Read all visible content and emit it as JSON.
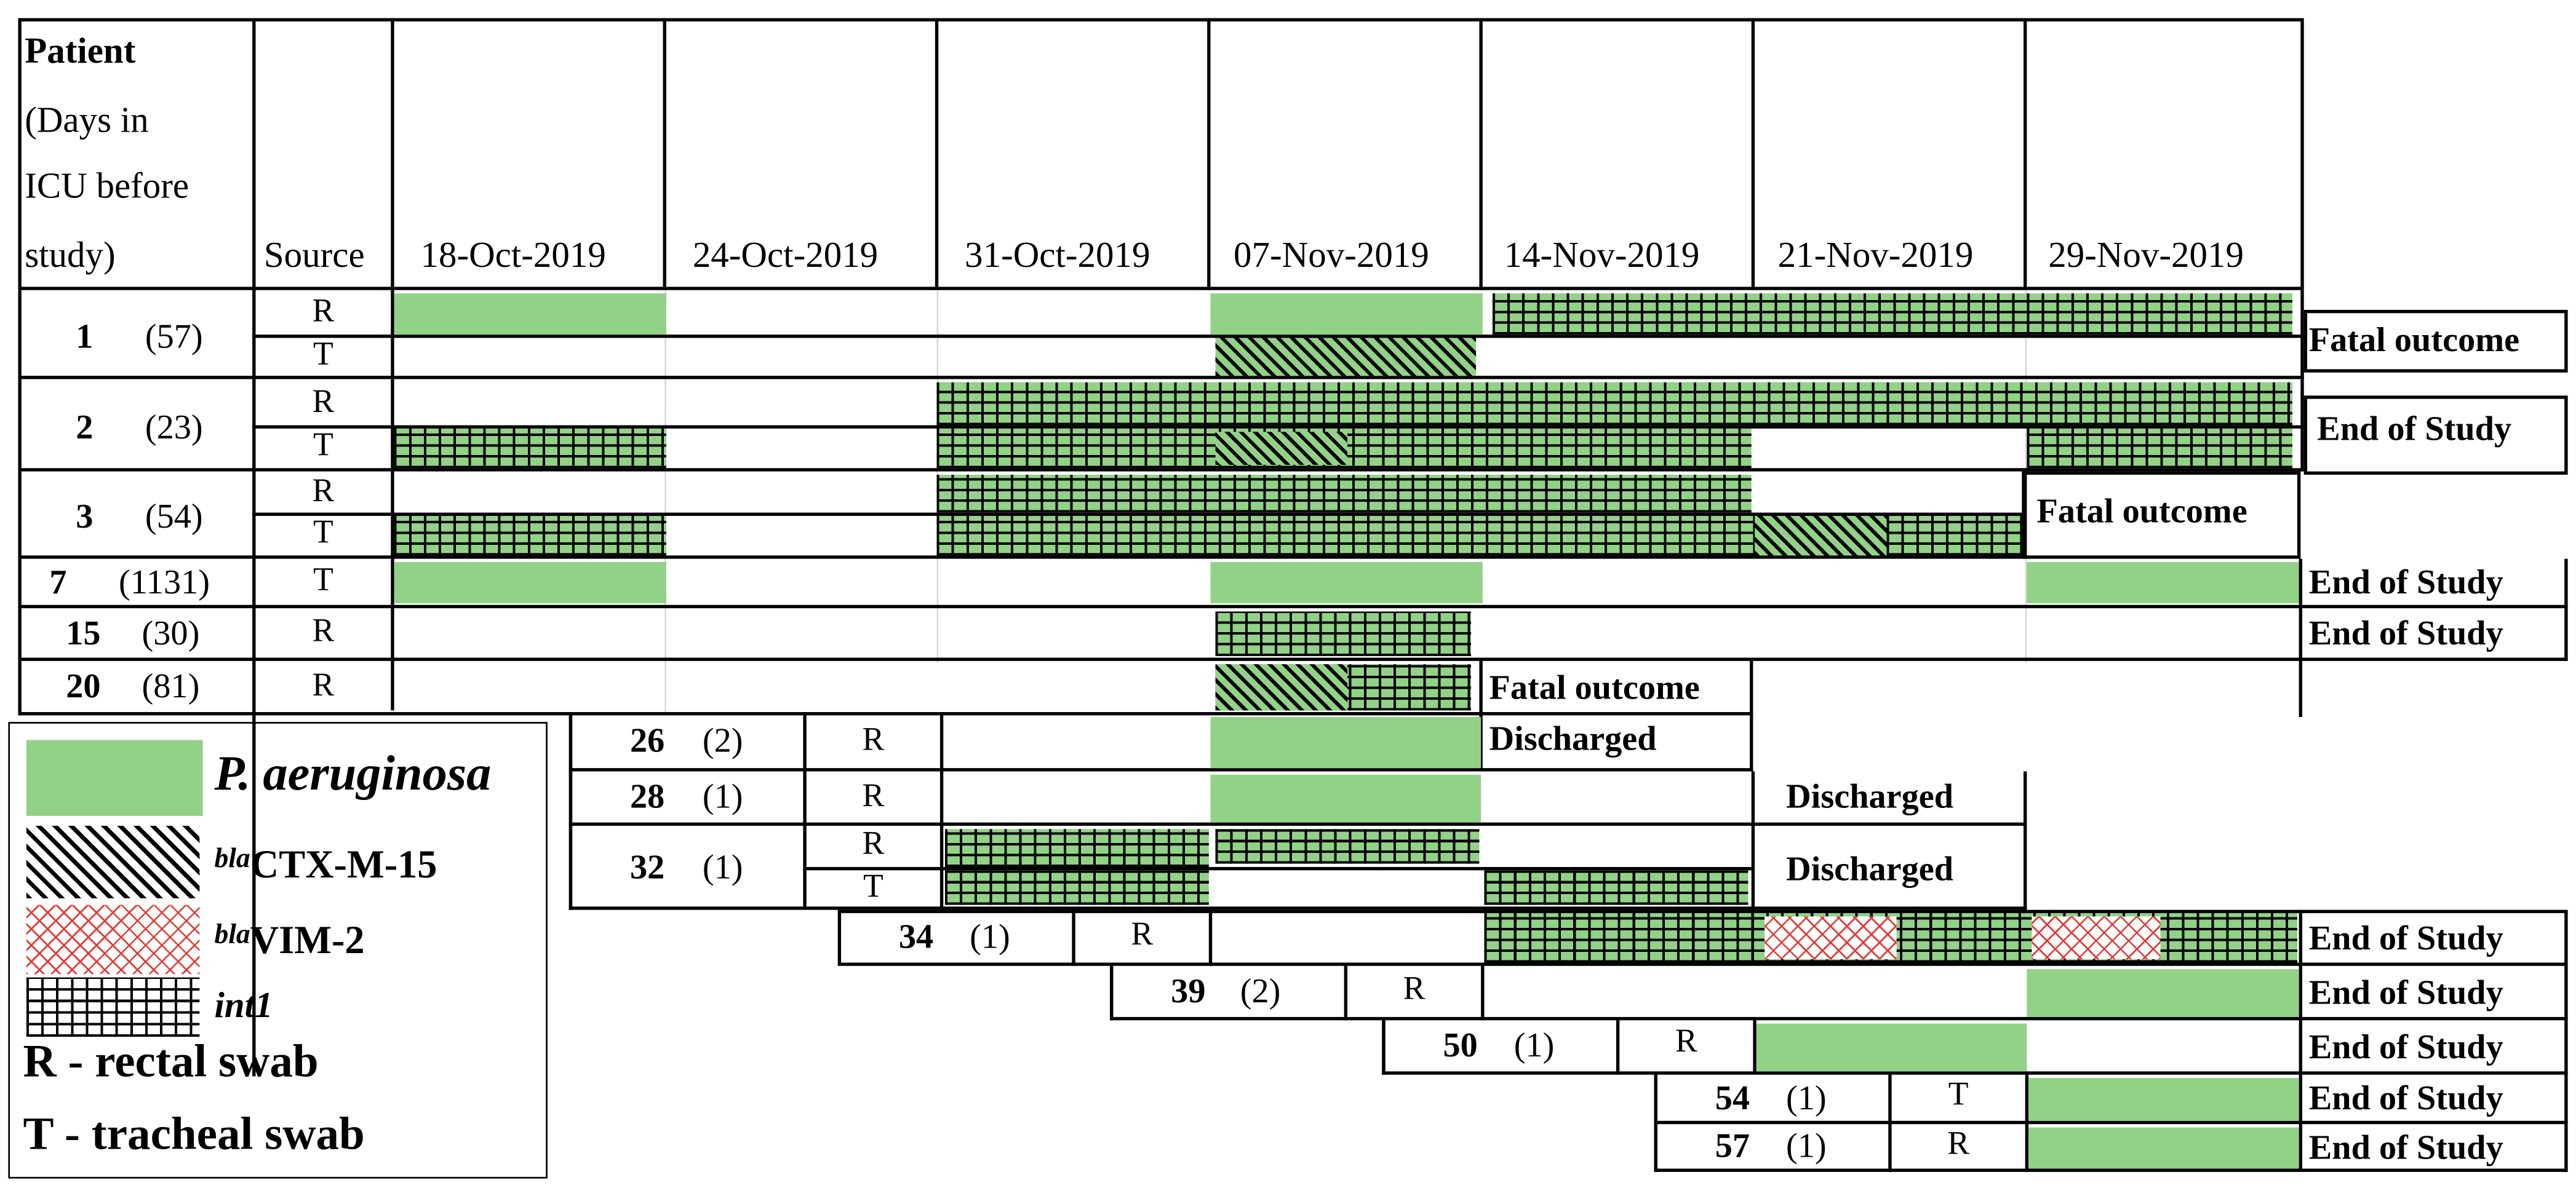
{
  "header": {
    "patient_line1": "Patient",
    "patient_line2": "(Days in",
    "patient_line3": "ICU before",
    "patient_line4": "study)",
    "source": "Source",
    "dates": [
      "18-Oct-2019",
      "24-Oct-2019",
      "31-Oct-2019",
      "07-Nov-2019",
      "14-Nov-2019",
      "21-Nov-2019",
      "29-Nov-2019"
    ]
  },
  "patients": [
    {
      "id": "1",
      "days": "(57)",
      "sources": [
        "R",
        "T"
      ],
      "outcome": "Fatal outcome"
    },
    {
      "id": "2",
      "days": "(23)",
      "sources": [
        "R",
        "T"
      ],
      "outcome": "End of Study"
    },
    {
      "id": "3",
      "days": "(54)",
      "sources": [
        "R",
        "T"
      ],
      "outcome": "Fatal outcome"
    },
    {
      "id": "7",
      "days": "(1131)",
      "sources": [
        "T"
      ],
      "outcome": "End of Study"
    },
    {
      "id": "15",
      "days": "(30)",
      "sources": [
        "R"
      ],
      "outcome": "End of Study"
    },
    {
      "id": "20",
      "days": "(81)",
      "sources": [
        "R"
      ],
      "outcome": "Fatal outcome"
    },
    {
      "id": "26",
      "days": "(2)",
      "sources": [
        "R"
      ],
      "outcome": "Discharged"
    },
    {
      "id": "28",
      "days": "(1)",
      "sources": [
        "R"
      ],
      "outcome": "Discharged"
    },
    {
      "id": "32",
      "days": "(1)",
      "sources": [
        "R",
        "T"
      ],
      "outcome": "Discharged"
    },
    {
      "id": "34",
      "days": "(1)",
      "sources": [
        "R"
      ],
      "outcome": "End of Study"
    },
    {
      "id": "39",
      "days": "(2)",
      "sources": [
        "R"
      ],
      "outcome": "End of Study"
    },
    {
      "id": "50",
      "days": "(1)",
      "sources": [
        "R"
      ],
      "outcome": "End of Study"
    },
    {
      "id": "54",
      "days": "(1)",
      "sources": [
        "T"
      ],
      "outcome": "End of Study"
    },
    {
      "id": "57",
      "days": "(1)",
      "sources": [
        "R"
      ],
      "outcome": "End of Study"
    }
  ],
  "legend": {
    "pa": "P. aeruginosa",
    "ctx_prefix": "bla",
    "ctx_name": "CTX-M-15",
    "vim_prefix": "bla",
    "vim_name": "VIM-2",
    "int": "int1",
    "rectal": "R - rectal swab",
    "tracheal": "T - tracheal swab"
  },
  "colors": {
    "pa_green": "#92d287",
    "vim_red": "#e53935",
    "grid": "#000000"
  }
}
